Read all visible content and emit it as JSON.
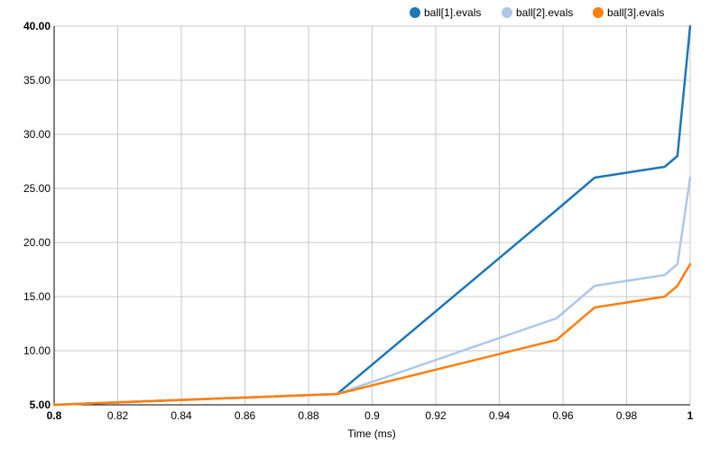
{
  "chart_data": {
    "type": "line",
    "xlabel": "Time (ms)",
    "ylabel": "",
    "xlim": [
      0.8,
      1.0
    ],
    "ylim": [
      5,
      40
    ],
    "grid": true,
    "legend_position": "top-right",
    "x_ticks": [
      "0.8",
      "0.82",
      "0.84",
      "0.86",
      "0.88",
      "0.9",
      "0.92",
      "0.94",
      "0.96",
      "0.98",
      "1"
    ],
    "y_ticks": [
      "5.00",
      "10.00",
      "15.00",
      "20.00",
      "25.00",
      "30.00",
      "35.00",
      "40.00"
    ],
    "series": [
      {
        "name": "ball[1].evals",
        "color": "#1f77b4",
        "x": [
          0.8,
          0.889,
          0.958,
          0.962,
          0.97,
          0.992,
          0.996,
          1.0
        ],
        "y": [
          5,
          6,
          23,
          24,
          26,
          27,
          28,
          40
        ]
      },
      {
        "name": "ball[2].evals",
        "color": "#aec7e8",
        "x": [
          0.8,
          0.889,
          0.958,
          0.962,
          0.97,
          0.992,
          0.996,
          1.0
        ],
        "y": [
          5,
          6,
          13,
          14,
          16,
          17,
          18,
          26
        ]
      },
      {
        "name": "ball[3].evals",
        "color": "#ff7f0e",
        "x": [
          0.8,
          0.889,
          0.958,
          0.962,
          0.97,
          0.992,
          0.996,
          1.0
        ],
        "y": [
          5,
          6,
          11,
          12,
          14,
          15,
          16,
          18
        ]
      }
    ]
  }
}
